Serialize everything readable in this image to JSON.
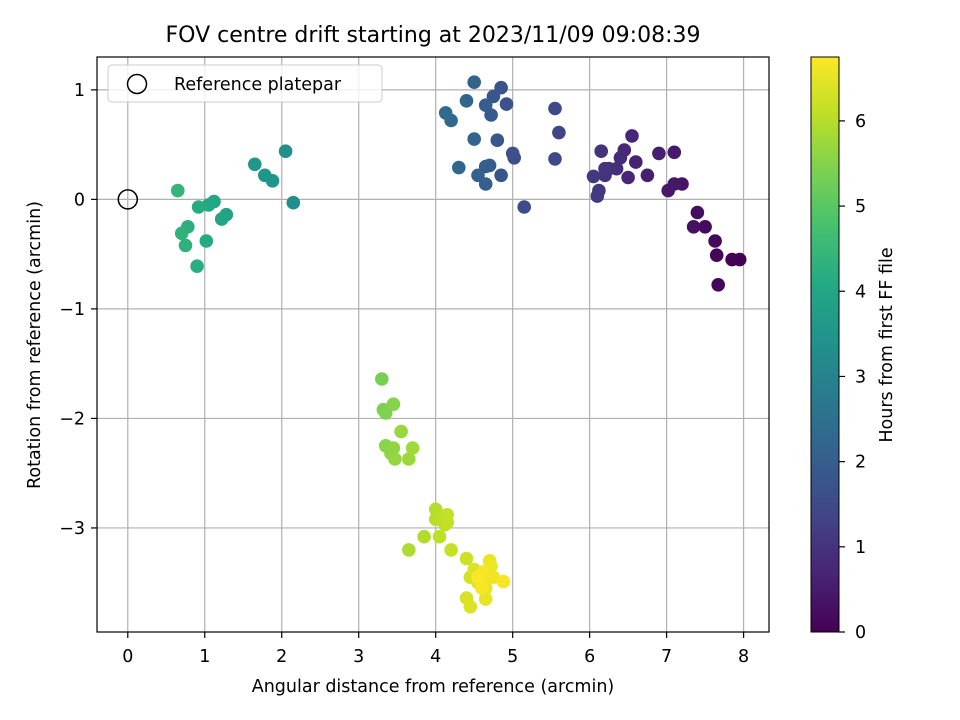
{
  "chart_data": {
    "type": "scatter",
    "title": "FOV centre drift starting at 2023/11/09 09:08:39",
    "xlabel": "Angular distance from reference (arcmin)",
    "ylabel": "Rotation from reference (arcmin)",
    "xlim": [
      -0.4,
      8.33
    ],
    "ylim": [
      -3.95,
      1.3
    ],
    "xticks": [
      0,
      1,
      2,
      3,
      4,
      5,
      6,
      7,
      8
    ],
    "yticks": [
      1,
      0,
      -1,
      -2,
      -3
    ],
    "ytick_labels": [
      "1",
      "0",
      "−1",
      "−2",
      "−3"
    ],
    "grid": true,
    "legend": {
      "placement": "top-left",
      "entries": [
        "Reference platepar"
      ]
    },
    "reference_point": {
      "x": 0,
      "y": 0,
      "label": "Reference platepar"
    },
    "colorbar": {
      "label": "Hours from first FF file",
      "range": [
        0,
        6.75
      ],
      "ticks": [
        0,
        1,
        2,
        3,
        4,
        5,
        6
      ],
      "colormap": "viridis"
    },
    "points": [
      [
        7.95,
        -0.55,
        0.0
      ],
      [
        7.85,
        -0.55,
        0.05
      ],
      [
        7.65,
        -0.51,
        0.1
      ],
      [
        7.67,
        -0.78,
        0.12
      ],
      [
        7.63,
        -0.38,
        0.15
      ],
      [
        7.5,
        -0.25,
        0.2
      ],
      [
        7.4,
        -0.12,
        0.25
      ],
      [
        7.35,
        -0.25,
        0.3
      ],
      [
        7.2,
        0.14,
        0.38
      ],
      [
        7.1,
        0.14,
        0.42
      ],
      [
        7.02,
        0.08,
        0.45
      ],
      [
        7.1,
        0.43,
        0.5
      ],
      [
        6.9,
        0.42,
        0.55
      ],
      [
        6.75,
        0.22,
        0.6
      ],
      [
        6.6,
        0.34,
        0.65
      ],
      [
        6.55,
        0.58,
        0.7
      ],
      [
        6.5,
        0.2,
        0.72
      ],
      [
        6.45,
        0.45,
        0.78
      ],
      [
        6.4,
        0.38,
        0.82
      ],
      [
        6.35,
        0.28,
        0.88
      ],
      [
        6.25,
        0.28,
        0.92
      ],
      [
        6.2,
        0.22,
        0.95
      ],
      [
        6.15,
        0.44,
        1.0
      ],
      [
        6.2,
        0.28,
        1.03
      ],
      [
        6.12,
        0.08,
        1.08
      ],
      [
        6.05,
        0.21,
        1.12
      ],
      [
        6.1,
        0.03,
        1.15
      ],
      [
        5.6,
        0.61,
        1.4
      ],
      [
        5.55,
        0.83,
        1.45
      ],
      [
        5.55,
        0.37,
        1.5
      ],
      [
        5.15,
        -0.07,
        1.55
      ],
      [
        5.02,
        0.38,
        1.6
      ],
      [
        5.0,
        0.42,
        1.65
      ],
      [
        4.92,
        0.87,
        1.7
      ],
      [
        4.85,
        1.02,
        1.73
      ],
      [
        4.85,
        0.22,
        1.78
      ],
      [
        4.8,
        0.54,
        1.82
      ],
      [
        4.75,
        0.94,
        1.85
      ],
      [
        4.72,
        0.77,
        1.9
      ],
      [
        4.7,
        0.31,
        1.93
      ],
      [
        4.65,
        0.86,
        1.97
      ],
      [
        4.65,
        0.3,
        2.0
      ],
      [
        4.65,
        0.14,
        2.05
      ],
      [
        4.55,
        0.22,
        2.08
      ],
      [
        4.5,
        1.07,
        2.12
      ],
      [
        4.5,
        0.55,
        2.16
      ],
      [
        4.4,
        0.9,
        2.2
      ],
      [
        4.3,
        0.29,
        2.25
      ],
      [
        4.2,
        0.72,
        2.3
      ],
      [
        4.13,
        0.79,
        2.35
      ],
      [
        2.15,
        -0.03,
        3.3
      ],
      [
        2.05,
        0.44,
        3.35
      ],
      [
        1.88,
        0.17,
        3.45
      ],
      [
        1.78,
        0.22,
        3.5
      ],
      [
        1.65,
        0.32,
        3.55
      ],
      [
        1.28,
        -0.14,
        3.9
      ],
      [
        1.22,
        -0.18,
        3.95
      ],
      [
        1.12,
        -0.02,
        4.0
      ],
      [
        1.05,
        -0.05,
        4.05
      ],
      [
        1.02,
        -0.38,
        4.1
      ],
      [
        0.92,
        -0.07,
        4.15
      ],
      [
        0.9,
        -0.61,
        4.2
      ],
      [
        0.78,
        -0.25,
        4.25
      ],
      [
        0.75,
        -0.42,
        4.3
      ],
      [
        0.7,
        -0.31,
        4.35
      ],
      [
        0.65,
        0.08,
        4.4
      ],
      [
        3.3,
        -1.64,
        5.35
      ],
      [
        3.32,
        -1.92,
        5.4
      ],
      [
        3.35,
        -1.95,
        5.45
      ],
      [
        3.45,
        -1.87,
        5.5
      ],
      [
        3.35,
        -2.25,
        5.55
      ],
      [
        3.42,
        -2.32,
        5.58
      ],
      [
        3.45,
        -2.27,
        5.62
      ],
      [
        3.47,
        -2.37,
        5.65
      ],
      [
        3.55,
        -2.12,
        5.7
      ],
      [
        3.65,
        -2.37,
        5.75
      ],
      [
        3.7,
        -2.27,
        5.78
      ],
      [
        3.65,
        -3.2,
        5.9
      ],
      [
        3.85,
        -3.08,
        5.95
      ],
      [
        4.0,
        -2.83,
        6.0
      ],
      [
        4.0,
        -2.92,
        6.02
      ],
      [
        4.08,
        -2.89,
        6.05
      ],
      [
        4.05,
        -3.08,
        6.08
      ],
      [
        4.12,
        -2.97,
        6.1
      ],
      [
        4.15,
        -2.88,
        6.12
      ],
      [
        4.15,
        -2.95,
        6.15
      ],
      [
        4.2,
        -3.2,
        6.18
      ],
      [
        4.4,
        -3.28,
        6.25
      ],
      [
        4.45,
        -3.45,
        6.3
      ],
      [
        4.4,
        -3.64,
        6.35
      ],
      [
        4.5,
        -3.38,
        6.38
      ],
      [
        4.45,
        -3.72,
        6.4
      ],
      [
        4.55,
        -3.5,
        6.45
      ],
      [
        4.6,
        -3.5,
        6.48
      ],
      [
        4.65,
        -3.55,
        6.5
      ],
      [
        4.65,
        -3.65,
        6.52
      ],
      [
        4.7,
        -3.3,
        6.55
      ],
      [
        4.72,
        -3.35,
        6.58
      ],
      [
        4.75,
        -3.45,
        6.6
      ],
      [
        4.68,
        -3.45,
        6.62
      ],
      [
        4.62,
        -3.4,
        6.65
      ],
      [
        4.6,
        -3.55,
        6.68
      ],
      [
        4.88,
        -3.49,
        6.7
      ],
      [
        4.55,
        -3.45,
        6.72
      ]
    ]
  }
}
